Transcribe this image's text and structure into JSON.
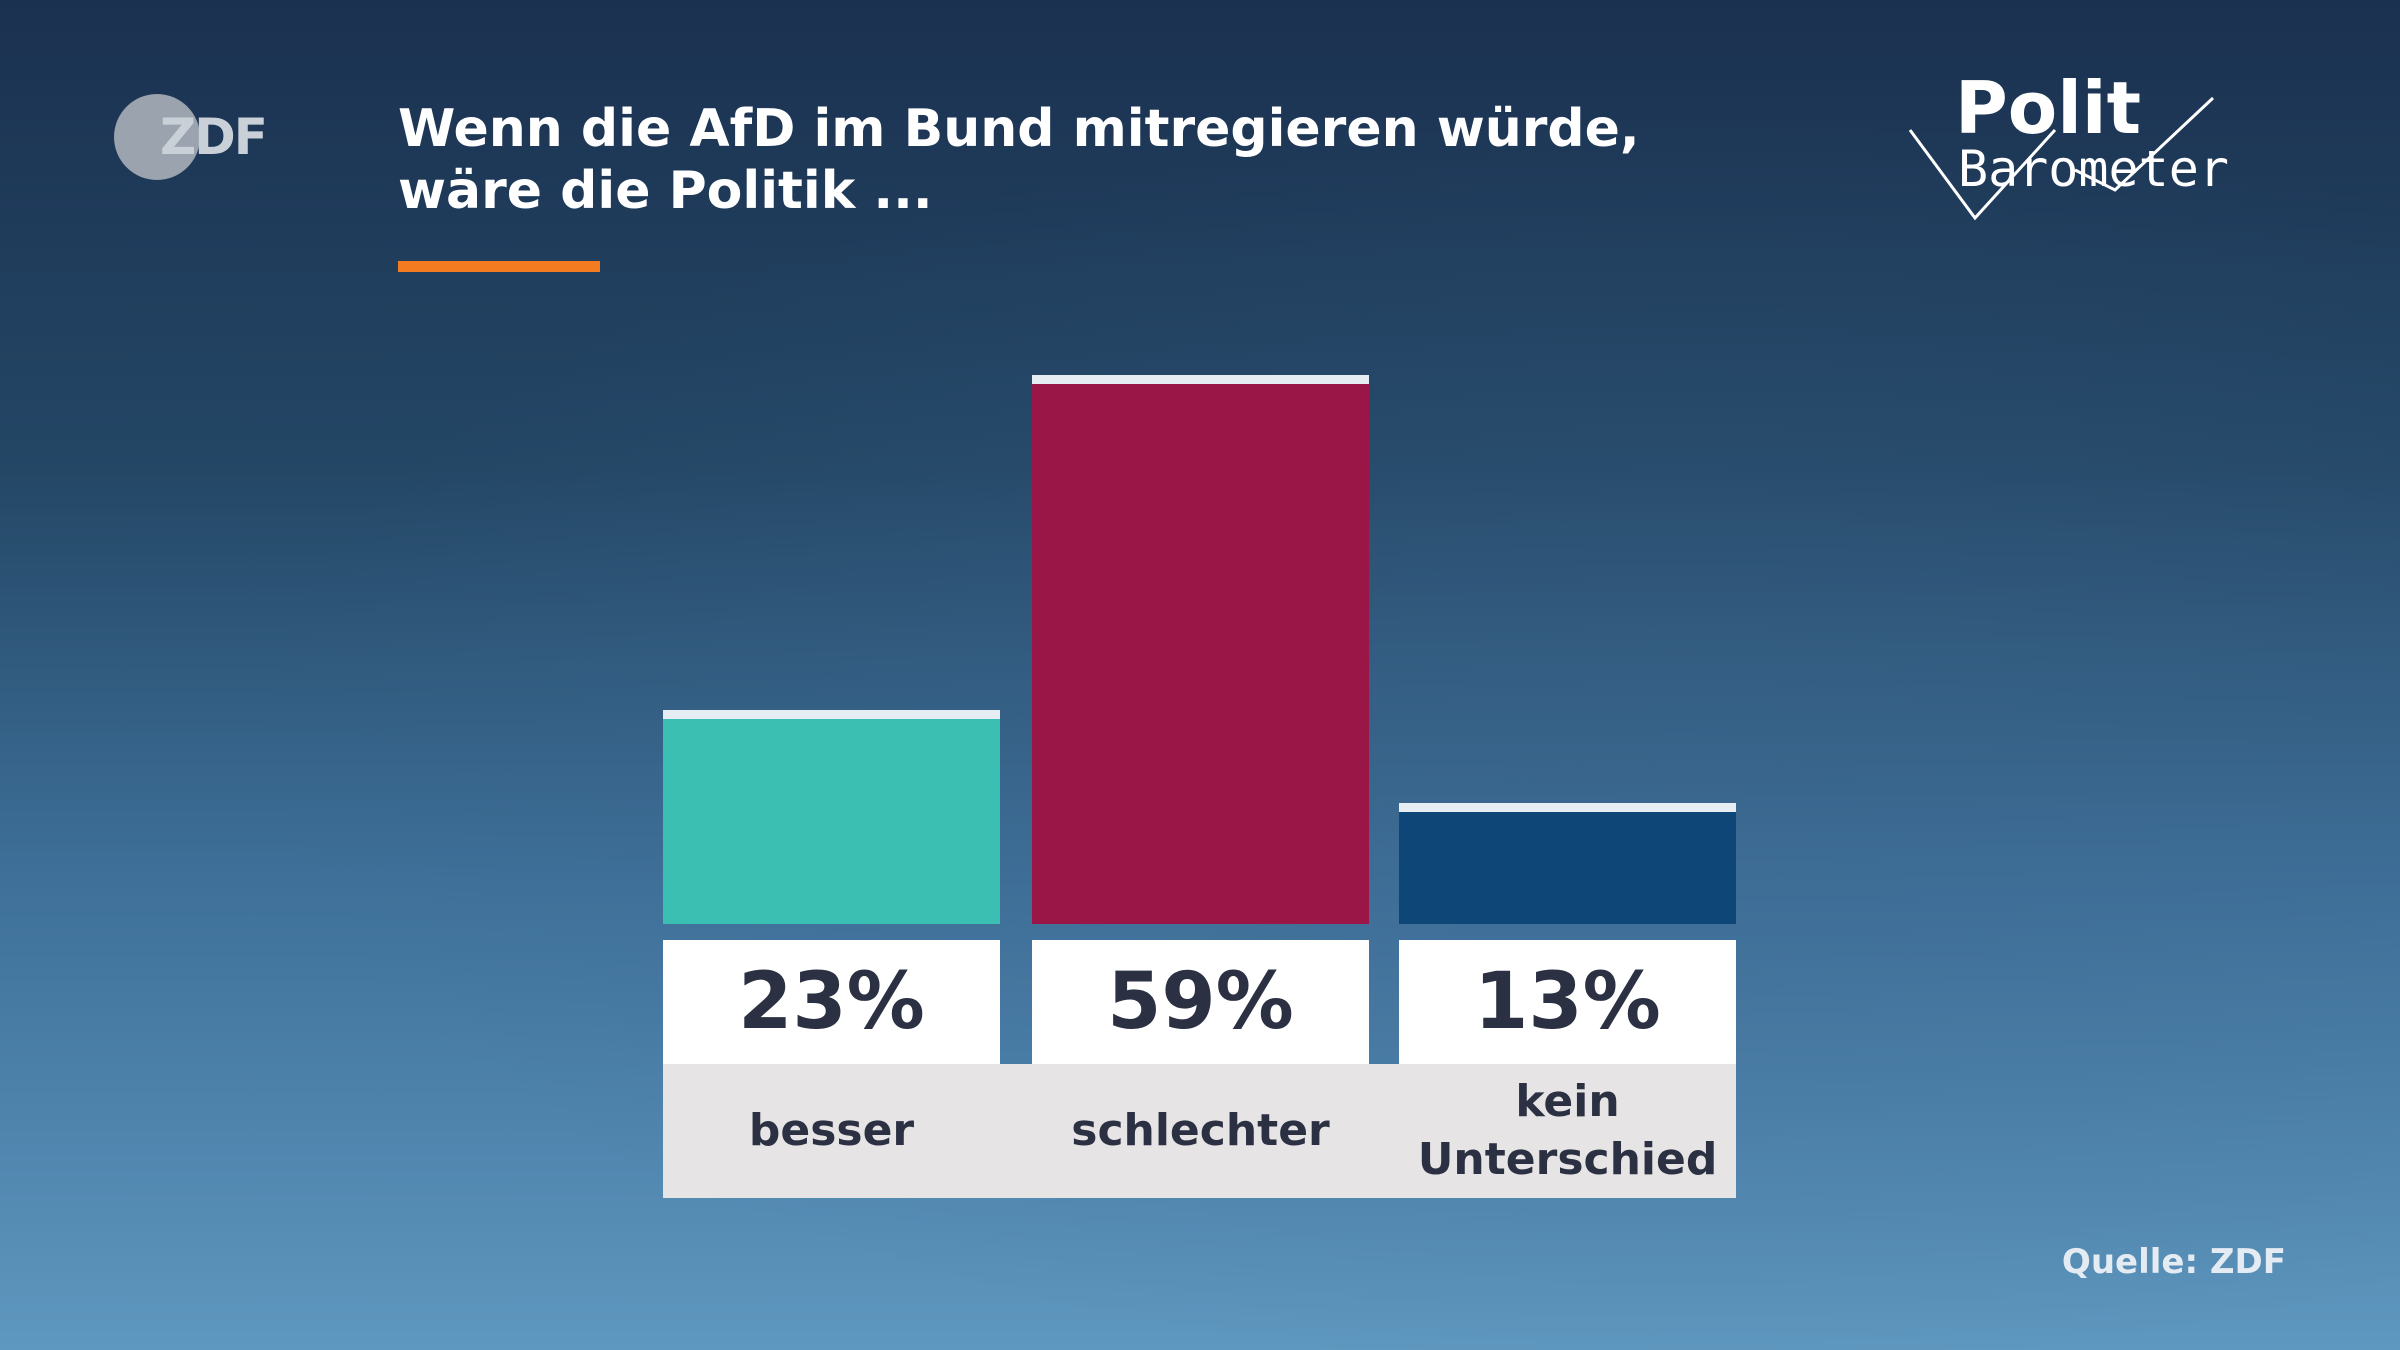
{
  "chart_data": {
    "type": "bar",
    "title": "Wenn die AfD im Bund mitregieren würde, wäre die Politik ...",
    "categories": [
      "besser",
      "schlechter",
      "kein Unterschied"
    ],
    "values": [
      23,
      59,
      13
    ],
    "value_labels": [
      "23%",
      "59%",
      "13%"
    ],
    "colors": [
      "#3bbfb2",
      "#9a1646",
      "#0e4777"
    ],
    "source": "Quelle: ZDF"
  },
  "logos": {
    "broadcaster": "ZDF",
    "program_line1": "Polit",
    "program_line2": "Barometer"
  }
}
